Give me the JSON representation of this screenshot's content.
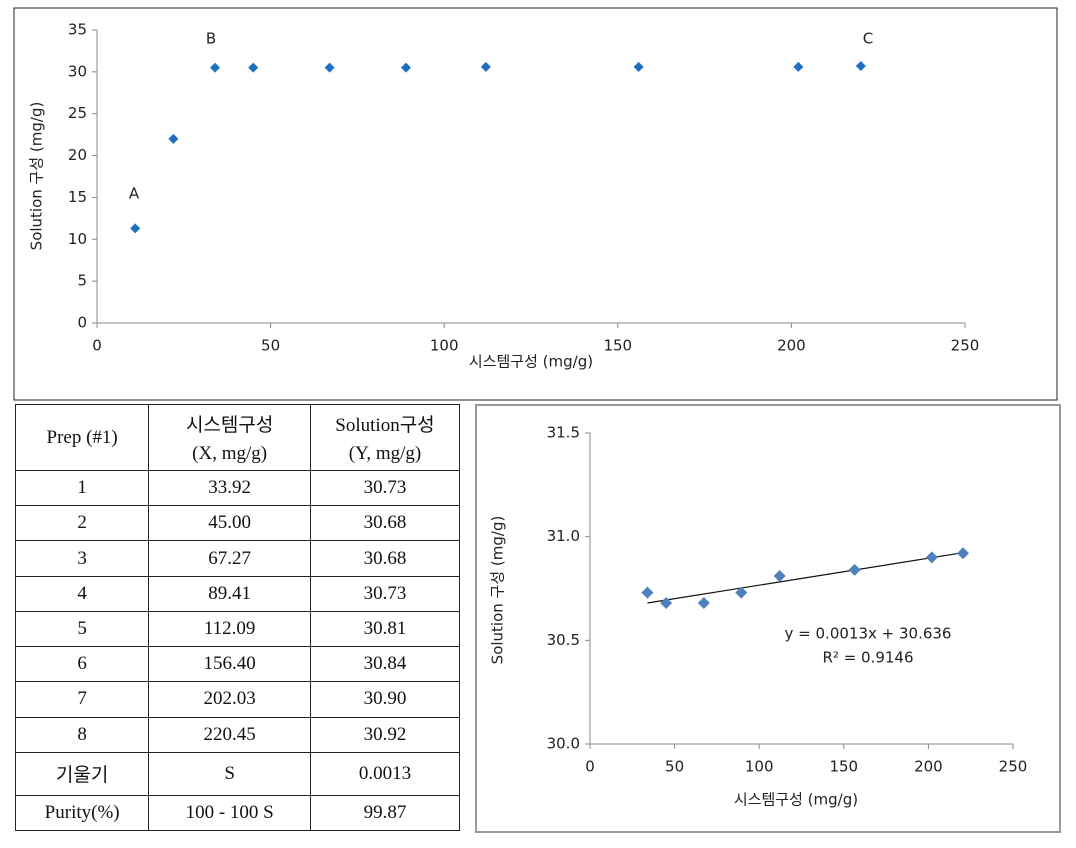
{
  "chart_data": [
    {
      "type": "scatter",
      "x_label": "시스템구성 (mg/g)",
      "y_label": "Solution 구성 (mg/g)",
      "annotations": [
        "A",
        "B",
        "C"
      ],
      "series": [
        {
          "color": "#1f6fc0",
          "x": [
            11,
            22,
            34,
            45,
            67,
            89,
            112,
            156,
            202,
            220
          ],
          "values": [
            11.3,
            22,
            30.5,
            30.5,
            30.5,
            30.5,
            30.6,
            30.6,
            30.6,
            30.7
          ]
        }
      ],
      "xlim": [
        0,
        250
      ],
      "xticks": [
        0,
        50,
        100,
        150,
        200,
        250
      ],
      "ylim": [
        0,
        35
      ],
      "yticks": [
        0,
        5,
        10,
        15,
        20,
        25,
        30,
        35
      ],
      "grid": false
    },
    {
      "type": "scatter",
      "x_label": "시스템구성 (mg/g)",
      "y_label": "Solution 구성 (mg/g)",
      "series": [
        {
          "color": "#4f81bd",
          "x": [
            33.92,
            45.0,
            67.27,
            89.41,
            112.09,
            156.4,
            202.03,
            220.45
          ],
          "values": [
            30.73,
            30.68,
            30.68,
            30.73,
            30.81,
            30.84,
            30.9,
            30.92
          ]
        }
      ],
      "trendline": {
        "slope": 0.0013,
        "intercept": 30.636,
        "equation": "y = 0.0013x + 30.636",
        "r2_label": "R² = 0.9146"
      },
      "xlim": [
        0,
        250
      ],
      "xticks": [
        0,
        50,
        100,
        150,
        200,
        250
      ],
      "ylim": [
        30,
        31.5
      ],
      "yticks": [
        {
          "value": 30,
          "label": "30.0"
        },
        30.5,
        {
          "value": 31,
          "label": "31.0"
        },
        31.5
      ],
      "grid": false
    }
  ],
  "table": {
    "header": [
      [
        "Prep (#1)"
      ],
      [
        "시스템구성",
        "(X, mg/g)"
      ],
      [
        "Solution구성",
        "(Y, mg/g)"
      ]
    ],
    "rows": [
      [
        "1",
        "33.92",
        "30.73"
      ],
      [
        "2",
        "45.00",
        "30.68"
      ],
      [
        "3",
        "67.27",
        "30.68"
      ],
      [
        "4",
        "89.41",
        "30.73"
      ],
      [
        "5",
        "112.09",
        "30.81"
      ],
      [
        "6",
        "156.40",
        "30.84"
      ],
      [
        "7",
        "202.03",
        "30.90"
      ],
      [
        "8",
        "220.45",
        "30.92"
      ],
      [
        "기울기",
        "S",
        "0.0013"
      ],
      [
        "Purity(%)",
        "100 - 100 S",
        "99.87"
      ]
    ]
  }
}
